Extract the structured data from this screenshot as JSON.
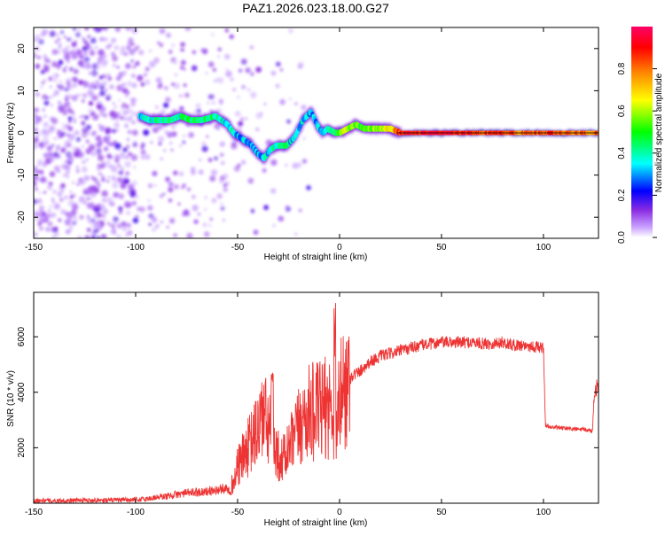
{
  "title": "PAZ1.2026.023.18.00.G27",
  "colors": {
    "snr_line": "#ee3333",
    "axis": "#000000",
    "background": "#ffffff"
  },
  "chart_data": [
    {
      "type": "heatmap",
      "panel": "top",
      "xlabel": "Height of straight line (km)",
      "ylabel": "Frequency (Hz)",
      "xlim": [
        -150,
        127
      ],
      "ylim": [
        -25,
        25
      ],
      "x_ticks": [
        -150,
        -100,
        -50,
        0,
        50,
        100
      ],
      "x_tick_labels": [
        "-150",
        "-100",
        "-50",
        "0",
        "50",
        "100"
      ],
      "y_ticks": [
        -20,
        -10,
        0,
        10,
        20
      ],
      "y_tick_labels": [
        "-20",
        "-10",
        "0",
        "10",
        "20"
      ],
      "ridge": {
        "x": [
          -98,
          -93,
          -88,
          -83,
          -78,
          -73,
          -68,
          -64,
          -61,
          -58,
          -55,
          -52,
          -49,
          -46,
          -43,
          -40,
          -37,
          -34,
          -31,
          -28,
          -26,
          -24,
          -22,
          -20,
          -18,
          -16,
          -14,
          -12,
          -10,
          -8,
          -6,
          -4,
          -2,
          0,
          2,
          4,
          6,
          8,
          10,
          12,
          14,
          16,
          20,
          25,
          30,
          40,
          50,
          60,
          70,
          80,
          90,
          100,
          110,
          120,
          127
        ],
        "freq": [
          4,
          3,
          3,
          3,
          4,
          3,
          3,
          3.5,
          4,
          3,
          2,
          0,
          -1,
          -2,
          -3,
          -5,
          -6,
          -4,
          -3,
          -3,
          -3,
          -2,
          -1,
          1,
          3,
          4,
          5,
          3,
          1,
          0,
          1,
          0.5,
          0,
          0,
          0.5,
          1,
          1.5,
          2,
          1.5,
          1,
          1,
          1,
          1,
          1,
          0,
          0,
          0,
          0,
          0,
          0,
          0,
          0,
          0,
          0,
          0
        ],
        "amplitude": [
          0.35,
          0.4,
          0.4,
          0.45,
          0.4,
          0.45,
          0.45,
          0.4,
          0.45,
          0.4,
          0.35,
          0.35,
          0.3,
          0.35,
          0.3,
          0.3,
          0.35,
          0.35,
          0.4,
          0.45,
          0.4,
          0.35,
          0.35,
          0.35,
          0.35,
          0.35,
          0.3,
          0.3,
          0.3,
          0.35,
          0.4,
          0.4,
          0.45,
          0.55,
          0.6,
          0.55,
          0.6,
          0.5,
          0.55,
          0.55,
          0.55,
          0.55,
          0.6,
          0.65,
          0.9,
          0.9,
          0.95,
          0.9,
          0.85,
          0.85,
          0.8,
          0.85,
          0.8,
          0.8,
          0.8
        ]
      }
    },
    {
      "type": "line",
      "panel": "bottom",
      "xlabel": "Height of straight line (km)",
      "ylabel": "SNR (10 * v/v)",
      "xlim": [
        -150,
        127
      ],
      "ylim": [
        0,
        7600
      ],
      "x_ticks": [
        -150,
        -100,
        -50,
        0,
        50,
        100
      ],
      "x_tick_labels": [
        "-150",
        "-100",
        "-50",
        "0",
        "50",
        "100"
      ],
      "y_ticks": [
        2000,
        4000,
        6000
      ],
      "y_tick_labels": [
        "2000",
        "4000",
        "6000"
      ],
      "series": [
        {
          "name": "SNR",
          "x": [
            -150,
            -140,
            -130,
            -120,
            -110,
            -100,
            -95,
            -90,
            -85,
            -80,
            -75,
            -70,
            -65,
            -60,
            -55,
            -52,
            -50,
            -47,
            -44,
            -41,
            -38,
            -35,
            -32,
            -29,
            -26,
            -23,
            -20,
            -17,
            -14,
            -11,
            -8,
            -5,
            -3,
            -2,
            -1,
            0,
            3,
            6,
            9,
            12,
            15,
            20,
            25,
            30,
            35,
            40,
            45,
            50,
            55,
            60,
            65,
            70,
            75,
            80,
            85,
            90,
            95,
            100,
            101,
            102,
            103,
            110,
            120,
            124,
            125,
            127
          ],
          "values": [
            100,
            90,
            100,
            110,
            110,
            120,
            150,
            210,
            250,
            310,
            370,
            400,
            420,
            470,
            560,
            700,
            1300,
            1700,
            2100,
            2500,
            3200,
            2800,
            2200,
            1500,
            1800,
            2200,
            2700,
            3100,
            3300,
            3300,
            3400,
            3500,
            3300,
            3000,
            2900,
            3800,
            4200,
            4600,
            4700,
            4900,
            5100,
            5300,
            5400,
            5500,
            5600,
            5700,
            5750,
            5800,
            5800,
            5800,
            5800,
            5750,
            5750,
            5800,
            5700,
            5700,
            5650,
            5600,
            2800,
            2800,
            2750,
            2700,
            2650,
            2600,
            4100,
            4200
          ]
        }
      ]
    }
  ],
  "colorbar": {
    "label": "Normalized spectral amplitude",
    "ticks": [
      0.0,
      0.2,
      0.4,
      0.6,
      0.8
    ],
    "tick_labels": [
      "0.0",
      "0.2",
      "0.4",
      "0.6",
      "0.8"
    ],
    "stops": [
      "#ffffff",
      "#c8a0ff",
      "#8a2be2",
      "#0000ff",
      "#00ffff",
      "#00ff00",
      "#ffff00",
      "#ff8800",
      "#ff0000",
      "#ff0066"
    ]
  }
}
